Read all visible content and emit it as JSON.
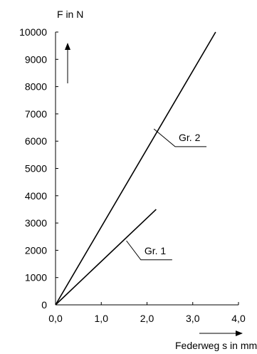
{
  "chart_data": {
    "type": "line",
    "ylabel": "F in N",
    "xlabel": "Federweg s in mm",
    "xlim": [
      0,
      4.0
    ],
    "ylim": [
      0,
      10000
    ],
    "x_ticks": [
      0,
      1.0,
      2.0,
      3.0,
      4.0
    ],
    "x_tick_labels": [
      "0,0",
      "1,0",
      "2,0",
      "3,0",
      "4,0"
    ],
    "y_ticks": [
      0,
      1000,
      2000,
      3000,
      4000,
      5000,
      6000,
      7000,
      8000,
      9000,
      10000
    ],
    "y_tick_labels": [
      "0",
      "1000",
      "2000",
      "3000",
      "4000",
      "5000",
      "6000",
      "7000",
      "8000",
      "9000",
      "10000"
    ],
    "grid": false,
    "series": [
      {
        "name": "Gr. 1",
        "x": [
          0,
          2.2
        ],
        "y": [
          0,
          3500
        ],
        "label_anchor": {
          "x": 1.55,
          "y": 2350
        },
        "label_pos": {
          "x": 2.55,
          "y": 1650
        }
      },
      {
        "name": "Gr. 2",
        "x": [
          0,
          3.5
        ],
        "y": [
          0,
          10000
        ],
        "label_anchor": {
          "x": 2.15,
          "y": 6450
        },
        "label_pos": {
          "x": 3.3,
          "y": 5800
        }
      }
    ],
    "annotations": [
      "force-direction-arrow",
      "displacement-direction-arrow"
    ]
  }
}
